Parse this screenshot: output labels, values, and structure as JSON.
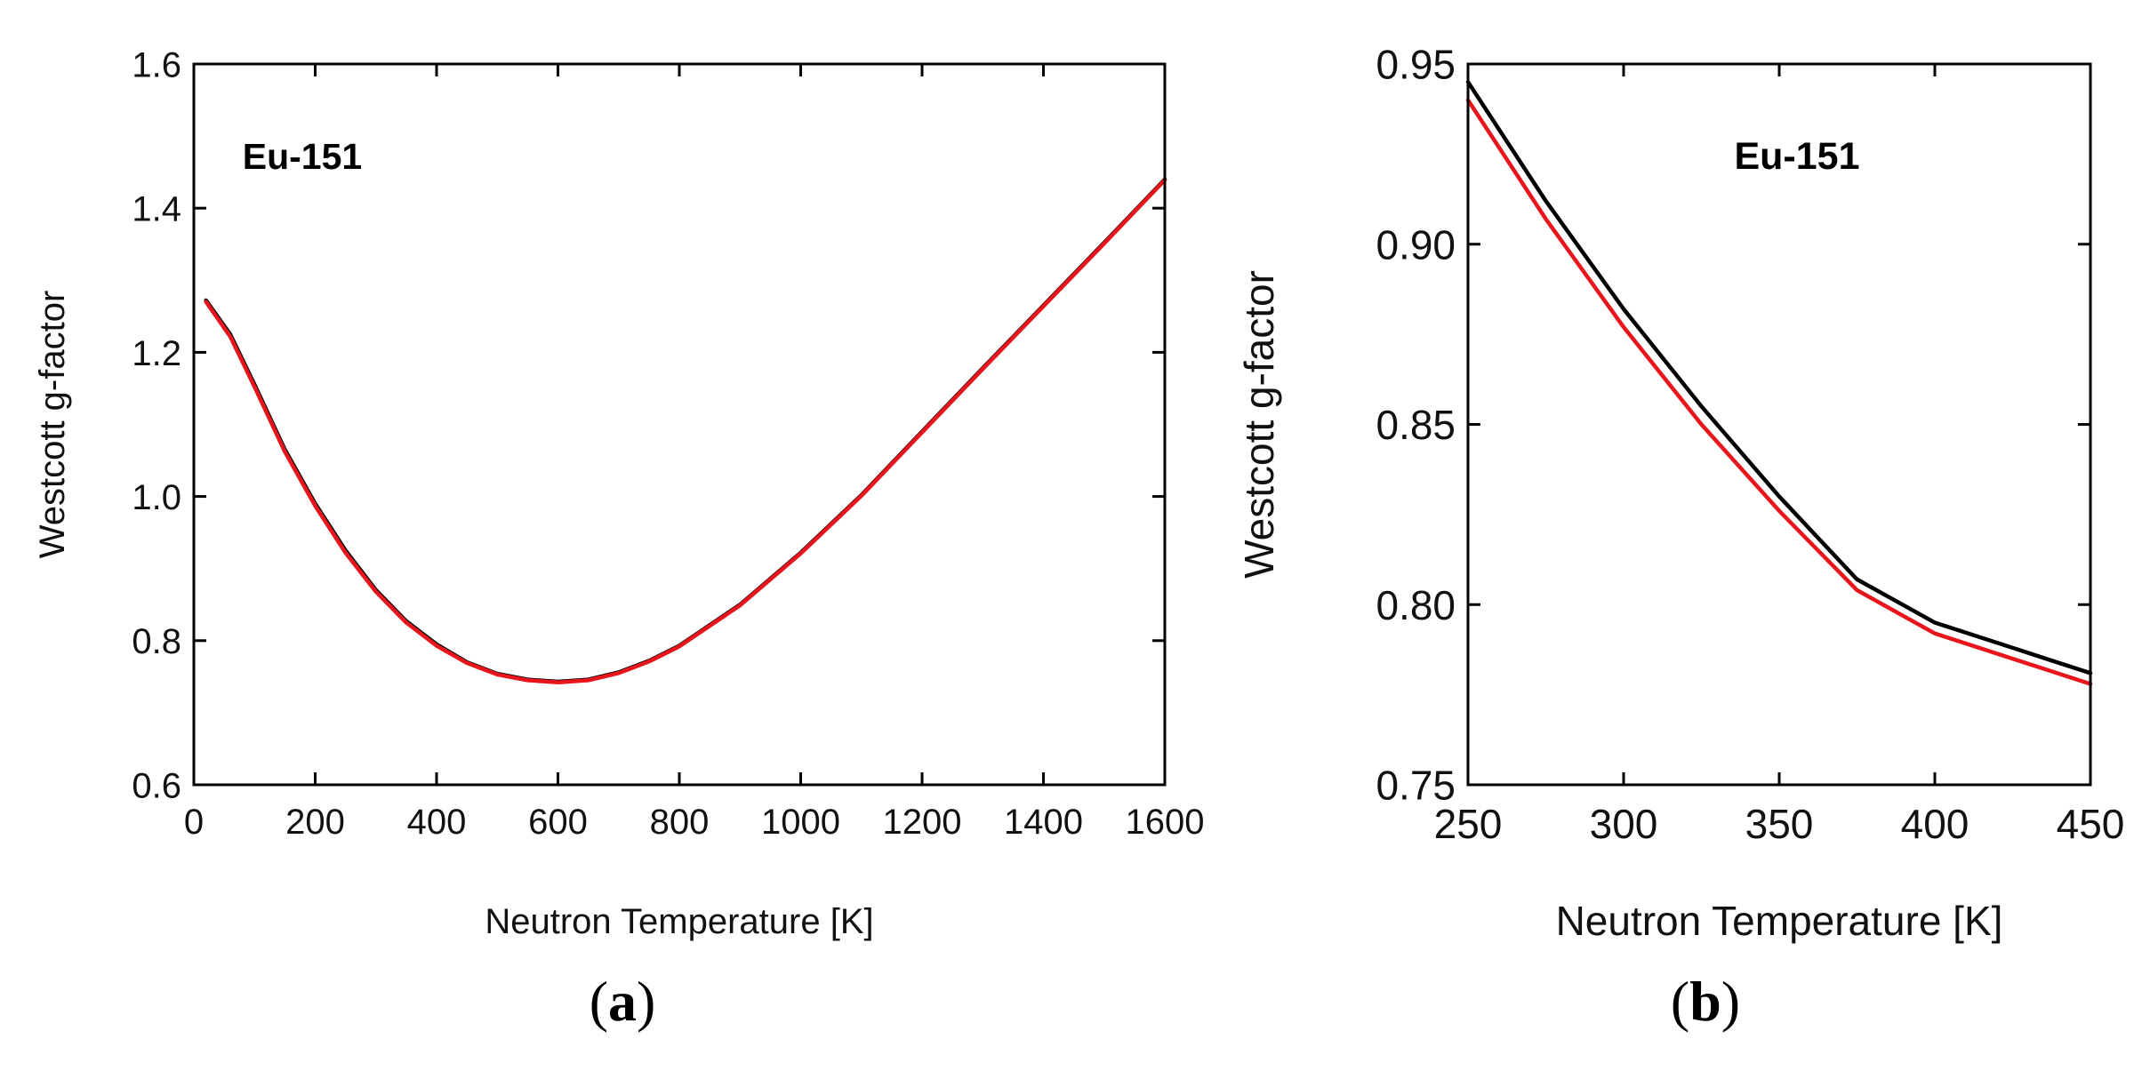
{
  "chart_data": [
    {
      "panel": "(a)",
      "panel_paren_open": "(",
      "panel_letter": "a",
      "panel_paren_close": ")",
      "type": "line",
      "title": "",
      "annotation": "Eu-151",
      "xlabel": "Neutron Temperature [K]",
      "ylabel": "Westcott g-factor",
      "xlim": [
        0,
        1600
      ],
      "ylim": [
        0.6,
        1.6
      ],
      "xticks": [
        0,
        200,
        400,
        600,
        800,
        1000,
        1200,
        1400,
        1600
      ],
      "xtick_labels": [
        "0",
        "200",
        "400",
        "600",
        "800",
        "1000",
        "1200",
        "1400",
        "1600"
      ],
      "yticks": [
        0.6,
        0.8,
        1.0,
        1.2,
        1.4,
        1.6
      ],
      "ytick_labels": [
        "0.6",
        "0.8",
        "1.0",
        "1.2",
        "1.4",
        "1.6"
      ],
      "grid": false,
      "series": [
        {
          "name": "black",
          "color": "#000000",
          "x": [
            20,
            60,
            100,
            150,
            200,
            250,
            300,
            350,
            400,
            450,
            500,
            550,
            600,
            650,
            700,
            750,
            800,
            900,
            1000,
            1100,
            1200,
            1300,
            1400,
            1500,
            1600
          ],
          "y": [
            1.272,
            1.225,
            1.155,
            1.065,
            0.99,
            0.925,
            0.87,
            0.827,
            0.795,
            0.77,
            0.754,
            0.746,
            0.743,
            0.746,
            0.756,
            0.772,
            0.793,
            0.85,
            0.922,
            1.002,
            1.09,
            1.178,
            1.265,
            1.352,
            1.44
          ]
        },
        {
          "name": "red",
          "color": "#e8161c",
          "x": [
            20,
            60,
            100,
            150,
            200,
            250,
            300,
            350,
            400,
            450,
            500,
            550,
            600,
            650,
            700,
            750,
            800,
            900,
            1000,
            1100,
            1200,
            1300,
            1400,
            1500,
            1600
          ],
          "y": [
            1.27,
            1.222,
            1.152,
            1.062,
            0.987,
            0.922,
            0.868,
            0.825,
            0.793,
            0.769,
            0.753,
            0.745,
            0.742,
            0.745,
            0.755,
            0.771,
            0.792,
            0.849,
            0.921,
            1.001,
            1.089,
            1.177,
            1.264,
            1.351,
            1.439
          ]
        }
      ]
    },
    {
      "panel": "(b)",
      "panel_paren_open": "(",
      "panel_letter": "b",
      "panel_paren_close": ")",
      "type": "line",
      "title": "",
      "annotation": "Eu-151",
      "xlabel": "Neutron Temperature [K]",
      "ylabel": "Westcott g-factor",
      "xlim": [
        250,
        450
      ],
      "ylim": [
        0.75,
        0.95
      ],
      "xticks": [
        250,
        300,
        350,
        400,
        450
      ],
      "xtick_labels": [
        "250",
        "300",
        "350",
        "400",
        "450"
      ],
      "yticks": [
        0.75,
        0.8,
        0.85,
        0.9,
        0.95
      ],
      "ytick_labels": [
        "0.75",
        "0.80",
        "0.85",
        "0.90",
        "0.95"
      ],
      "grid": false,
      "series": [
        {
          "name": "black",
          "color": "#000000",
          "x": [
            250,
            275,
            300,
            325,
            350,
            375,
            400,
            425,
            450
          ],
          "y": [
            0.945,
            0.912,
            0.882,
            0.855,
            0.83,
            0.807,
            0.795,
            0.788,
            0.781
          ]
        },
        {
          "name": "red",
          "color": "#e8161c",
          "x": [
            250,
            275,
            300,
            325,
            350,
            375,
            400,
            425,
            450
          ],
          "y": [
            0.94,
            0.907,
            0.877,
            0.85,
            0.826,
            0.804,
            0.792,
            0.785,
            0.778
          ]
        }
      ]
    }
  ]
}
